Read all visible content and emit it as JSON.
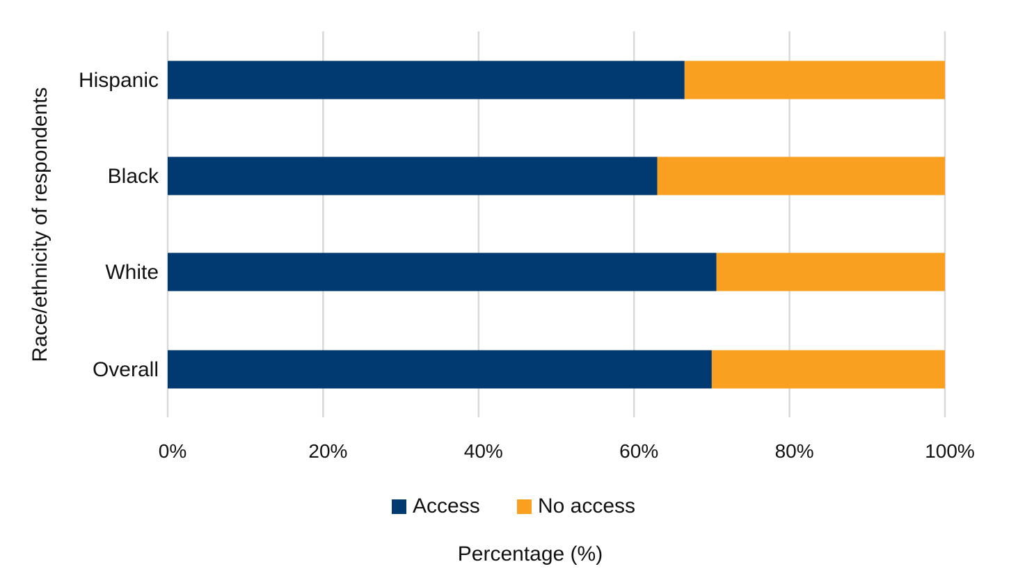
{
  "chart_data": {
    "type": "bar",
    "orientation": "horizontal",
    "stacked": true,
    "categories": [
      "Hispanic",
      "Black",
      "White",
      "Overall"
    ],
    "series": [
      {
        "name": "Access",
        "color": "#003A70",
        "values": [
          66.5,
          63,
          70.6,
          70
        ]
      },
      {
        "name": "No access",
        "color": "#FAA021",
        "values": [
          33.5,
          37,
          29.4,
          30
        ]
      }
    ],
    "xlim": [
      0,
      100
    ],
    "xticks": [
      "0%",
      "20%",
      "40%",
      "60%",
      "80%",
      "100%"
    ],
    "xlabel": "Percentage (%)",
    "ylabel": "Race/ethnicity of respondents",
    "grid": true,
    "legend_position": "bottom"
  }
}
